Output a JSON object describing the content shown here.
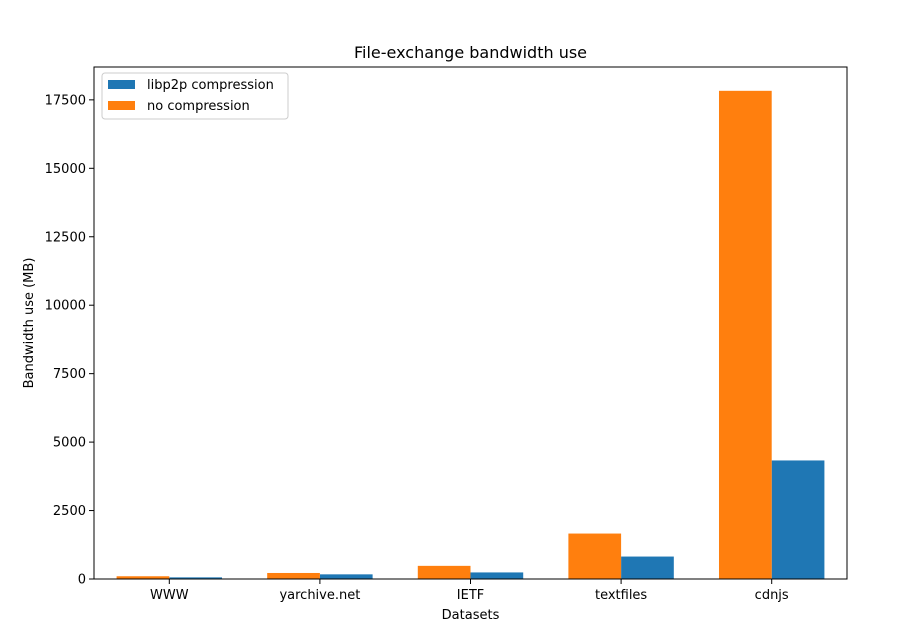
{
  "chart_data": {
    "type": "bar",
    "title": "File-exchange bandwidth use",
    "xlabel": "Datasets",
    "ylabel": "Bandwidth use (MB)",
    "categories": [
      "WWW",
      "yarchive.net",
      "IETF",
      "textfiles",
      "cdnjs"
    ],
    "ylim": [
      0,
      18700
    ],
    "yticks": [
      0,
      2500,
      5000,
      7500,
      10000,
      12500,
      15000,
      17500
    ],
    "grid": false,
    "legend_position": "top-left",
    "series": [
      {
        "name": "libp2p compression",
        "color": "#1f77b4",
        "values": [
          60,
          170,
          240,
          820,
          4330
        ]
      },
      {
        "name": "no compression",
        "color": "#ff7f0e",
        "values": [
          100,
          220,
          480,
          1660,
          17830
        ]
      }
    ]
  }
}
